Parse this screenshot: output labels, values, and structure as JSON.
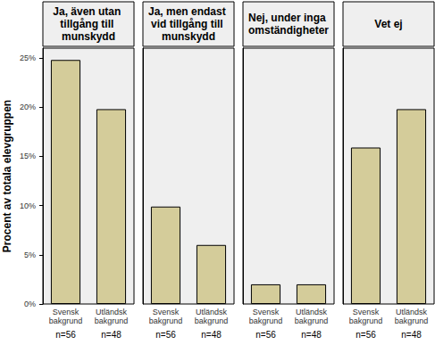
{
  "chart_data": [
    {
      "type": "bar",
      "title": "Ja, även utan tillgång till munskydd",
      "categories": [
        "Svensk bakgrund",
        "Utländsk bakgrund"
      ],
      "values": [
        24.8,
        19.8
      ],
      "annotations": [
        "n=56",
        "n=48"
      ],
      "color": "#d4cc9a",
      "ylabel": "Procent av totala elevgruppen",
      "ylim": [
        0,
        26
      ],
      "yticks": [
        {
          "value": 0,
          "label": "0%"
        },
        {
          "value": 5,
          "label": "5%"
        },
        {
          "value": 10,
          "label": "10%"
        },
        {
          "value": 15,
          "label": "15%"
        },
        {
          "value": 20,
          "label": "20%"
        },
        {
          "value": 25,
          "label": "25%"
        }
      ],
      "grid": false
    },
    {
      "type": "bar",
      "title": "Ja, men endast vid tillgång till munskydd",
      "categories": [
        "Svensk bakgrund",
        "Utländsk bakgrund"
      ],
      "values": [
        9.9,
        6.0
      ],
      "annotations": [
        "n=56",
        "n=48"
      ],
      "color": "#d4cc9a",
      "ylim": [
        0,
        26
      ],
      "yticks": [
        {
          "value": 0,
          "label": "0%"
        },
        {
          "value": 5,
          "label": "5%"
        },
        {
          "value": 10,
          "label": "10%"
        },
        {
          "value": 15,
          "label": "15%"
        },
        {
          "value": 20,
          "label": "20%"
        },
        {
          "value": 25,
          "label": "25%"
        }
      ],
      "grid": false,
      "tick_labels": "x"
    },
    {
      "type": "bar",
      "title": "Nej, under inga omständigheter",
      "categories": [
        "Svensk bakgrund",
        "Utländsk bakgrund"
      ],
      "values": [
        2.0,
        2.0
      ],
      "annotations": [
        "n=56",
        "n=48"
      ],
      "color": "#d4cc9a",
      "ylim": [
        0,
        26
      ],
      "yticks": [
        {
          "value": 0,
          "label": "0%"
        },
        {
          "value": 5,
          "label": "5%"
        },
        {
          "value": 10,
          "label": "10%"
        },
        {
          "value": 15,
          "label": "15%"
        },
        {
          "value": 20,
          "label": "20%"
        },
        {
          "value": 25,
          "label": "25%"
        }
      ],
      "grid": false,
      "tick_labels": "x"
    },
    {
      "type": "bar",
      "title": "Vet ej",
      "categories": [
        "Svensk bakgrund",
        "Utländsk bakgrund"
      ],
      "values": [
        15.9,
        19.8
      ],
      "annotations": [
        "n=56",
        "n=48"
      ],
      "color": "#d4cc9a",
      "ylim": [
        0,
        26
      ],
      "yticks": [
        {
          "value": 0,
          "label": "0%"
        },
        {
          "value": 5,
          "label": "5%"
        },
        {
          "value": 10,
          "label": "10%"
        },
        {
          "value": 15,
          "label": "15%"
        },
        {
          "value": 20,
          "label": "20%"
        },
        {
          "value": 25,
          "label": "25%"
        }
      ],
      "grid": false,
      "tick_labels": "x"
    }
  ]
}
